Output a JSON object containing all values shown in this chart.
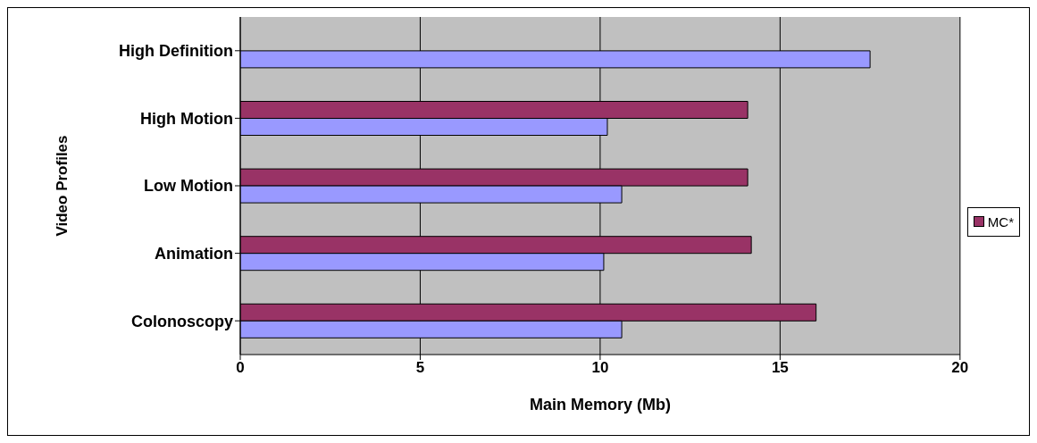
{
  "chart_data": {
    "type": "bar",
    "orientation": "horizontal",
    "xlabel": "Main Memory (Mb)",
    "ylabel": "Video Profiles",
    "categories": [
      "High Definition",
      "High Motion",
      "Low Motion",
      "Animation",
      "Colonoscopy"
    ],
    "series": [
      {
        "name": "MC*",
        "color": "#993366",
        "values": [
          null,
          14.1,
          14.1,
          14.2,
          16.0
        ]
      },
      {
        "color": "#9999ff",
        "values": [
          17.5,
          10.2,
          10.6,
          10.1,
          10.6
        ]
      }
    ],
    "xlim": [
      0,
      20
    ],
    "xticks": [
      0,
      5,
      10,
      15,
      20
    ],
    "grid": "x",
    "legend": "right"
  }
}
